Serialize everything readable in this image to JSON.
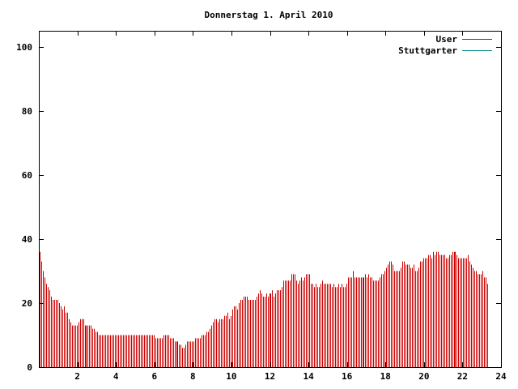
{
  "chart_data": {
    "type": "bar",
    "title": "Donnerstag 1. April 2010",
    "xlim": [
      0,
      24
    ],
    "ylim": [
      0,
      105
    ],
    "x_ticks": [
      2,
      4,
      6,
      8,
      10,
      12,
      14,
      16,
      18,
      20,
      22,
      24
    ],
    "y_ticks": [
      0,
      20,
      40,
      60,
      80,
      100
    ],
    "grid": false,
    "legend_position": "top-right",
    "bar_interval_minutes": 5,
    "series": [
      {
        "name": "User",
        "color": "#cc0000",
        "values": [
          36,
          33,
          30,
          28,
          26,
          25,
          24,
          22,
          21,
          21,
          21,
          21,
          20,
          19,
          18,
          19,
          17,
          17,
          15,
          14,
          13,
          13,
          13,
          13,
          14,
          15,
          15,
          15,
          13,
          13,
          13,
          13,
          13,
          12,
          12,
          11,
          11,
          10,
          10,
          10,
          10,
          10,
          10,
          10,
          10,
          10,
          10,
          10,
          10,
          10,
          10,
          10,
          10,
          10,
          10,
          10,
          10,
          10,
          10,
          10,
          10,
          10,
          10,
          10,
          10,
          10,
          10,
          10,
          10,
          10,
          10,
          10,
          9,
          9,
          9,
          9,
          9,
          10,
          10,
          10,
          10,
          9,
          9,
          9,
          8,
          8,
          8,
          7,
          7,
          6,
          6,
          7,
          8,
          8,
          8,
          8,
          8,
          9,
          9,
          9,
          9,
          10,
          10,
          10,
          11,
          11,
          12,
          13,
          14,
          15,
          15,
          14,
          15,
          15,
          15,
          16,
          16,
          17,
          15,
          16,
          18,
          19,
          19,
          18,
          20,
          21,
          21,
          22,
          22,
          22,
          21,
          21,
          21,
          21,
          21,
          22,
          23,
          24,
          23,
          22,
          22,
          23,
          22,
          23,
          23,
          24,
          22,
          23,
          24,
          24,
          24,
          25,
          27,
          27,
          27,
          27,
          27,
          29,
          29,
          29,
          27,
          26,
          27,
          28,
          27,
          28,
          29,
          29,
          29,
          26,
          26,
          25,
          26,
          25,
          25,
          26,
          27,
          26,
          26,
          26,
          26,
          26,
          25,
          26,
          25,
          25,
          26,
          25,
          26,
          25,
          25,
          26,
          28,
          28,
          28,
          30,
          28,
          28,
          28,
          28,
          28,
          28,
          28,
          29,
          28,
          29,
          28,
          28,
          27,
          27,
          27,
          27,
          28,
          29,
          29,
          30,
          31,
          32,
          33,
          33,
          32,
          30,
          30,
          30,
          30,
          31,
          33,
          33,
          32,
          32,
          32,
          31,
          31,
          32,
          30,
          30,
          31,
          33,
          33,
          34,
          34,
          34,
          35,
          35,
          34,
          36,
          35,
          36,
          36,
          35,
          35,
          35,
          35,
          34,
          34,
          35,
          35,
          36,
          36,
          36,
          35,
          34,
          34,
          34,
          34,
          34,
          34,
          35,
          33,
          32,
          31,
          30,
          30,
          29,
          29,
          29,
          30,
          28,
          28,
          26
        ]
      },
      {
        "name": "Stuttgarter",
        "color": "#008b8b",
        "values": []
      }
    ]
  }
}
